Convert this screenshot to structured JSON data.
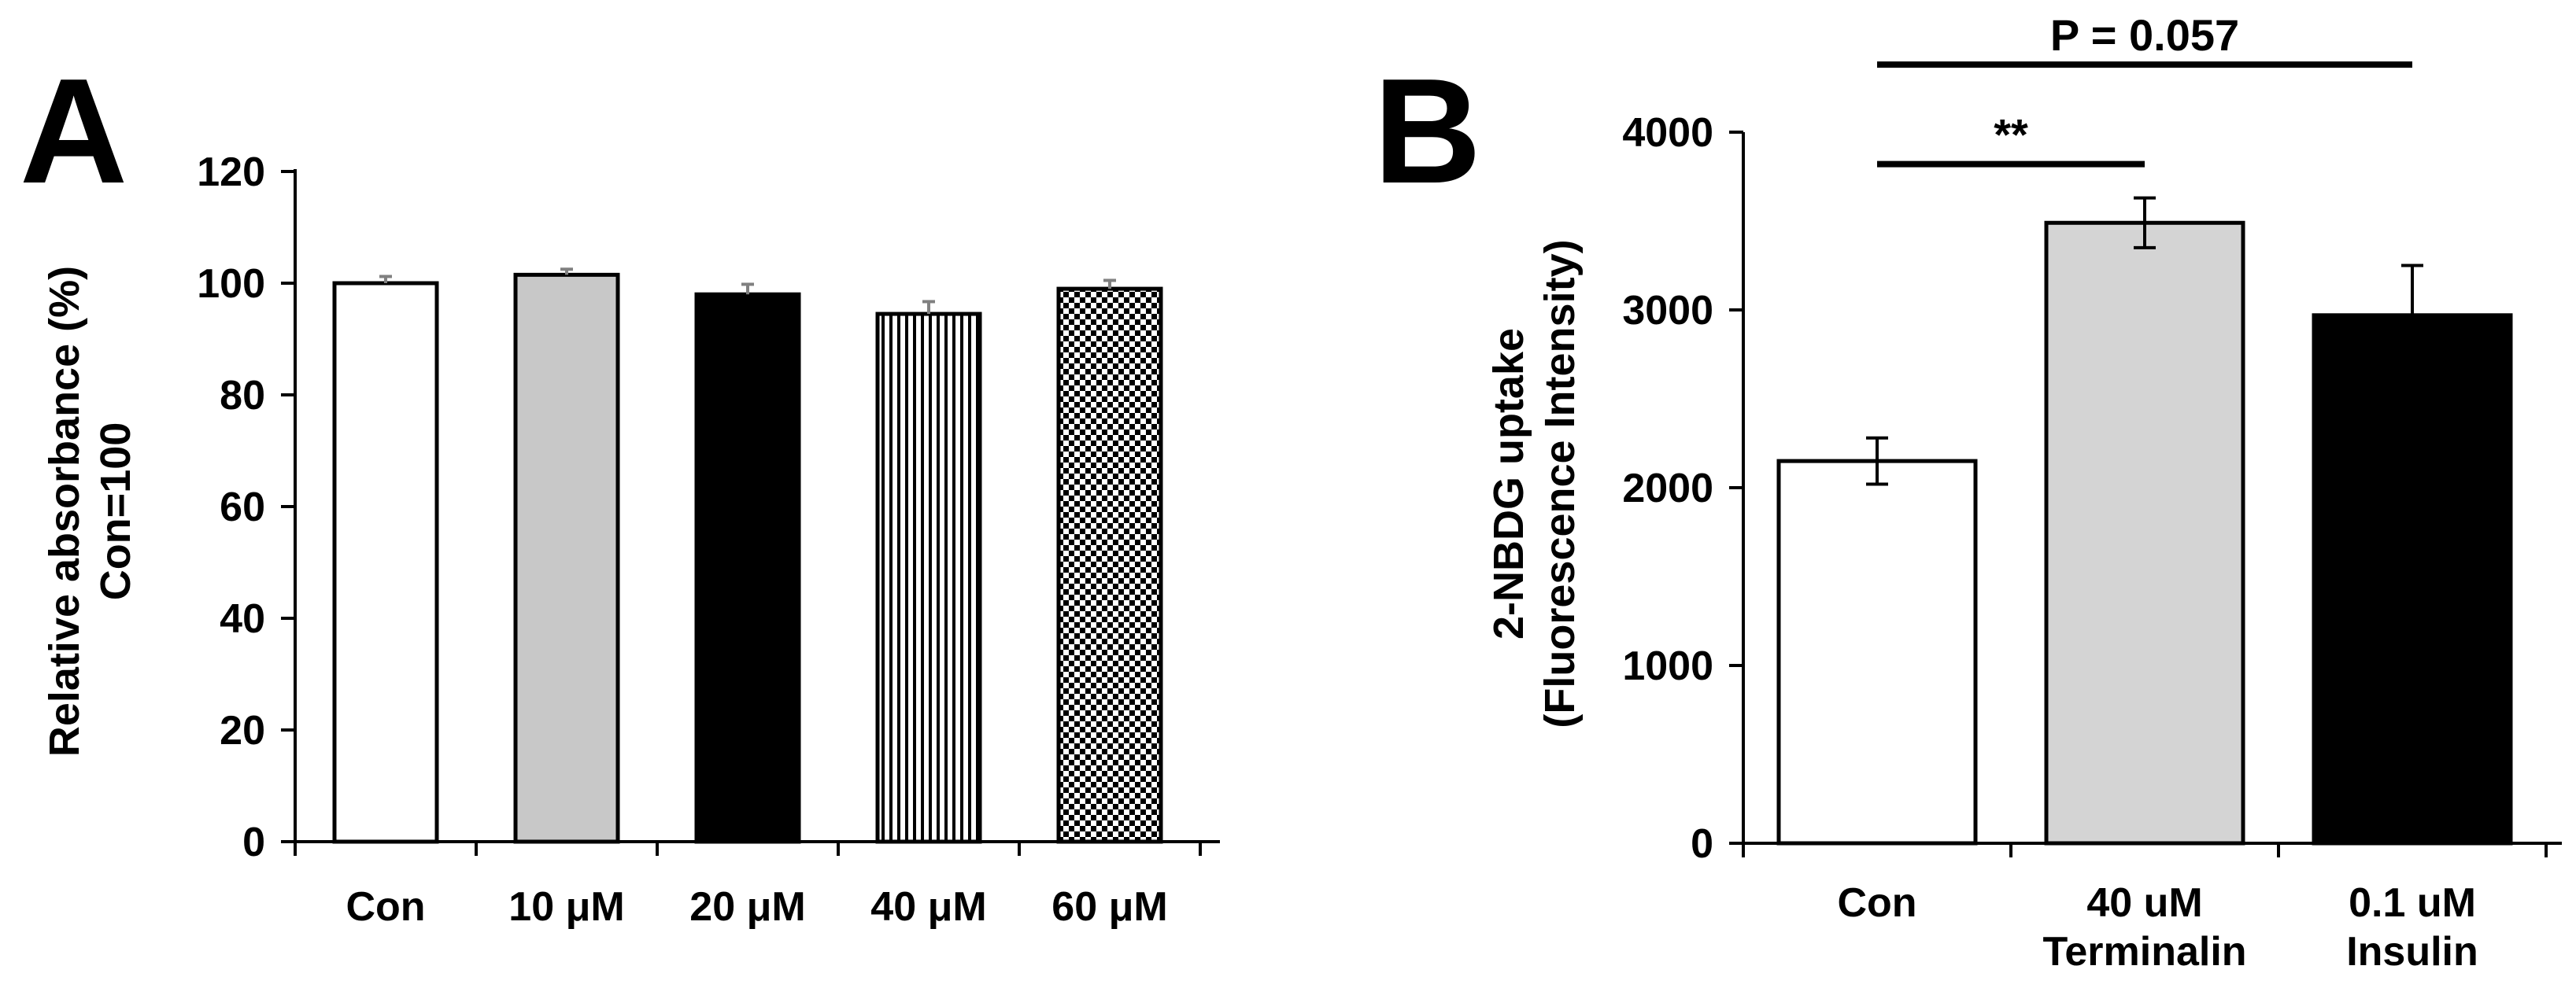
{
  "chart_data": [
    {
      "type": "bar",
      "panel": "A",
      "title": "",
      "xlabel": "",
      "ylabel": "Relative absorbance (%)",
      "ylabel2": "Con=100",
      "ylim": [
        0,
        120
      ],
      "yticks": [
        0,
        20,
        40,
        60,
        80,
        100,
        120
      ],
      "grid": false,
      "categories": [
        "Con",
        "10 μM",
        "20 μM",
        "40 μM",
        "60 μM"
      ],
      "values": [
        100,
        101.5,
        98,
        94.5,
        99
      ],
      "errors": [
        1.2,
        1.0,
        1.8,
        2.2,
        1.5
      ],
      "fills": [
        "white",
        "#c8c8c8",
        "black",
        "vertical-stripes",
        "checker"
      ]
    },
    {
      "type": "bar",
      "panel": "B",
      "title": "",
      "xlabel": "",
      "ylabel": "2-NBDG uptake",
      "ylabel2": "(Fluorescence Intensity)",
      "ylim": [
        0,
        4000
      ],
      "yticks": [
        0,
        1000,
        2000,
        3000,
        4000
      ],
      "grid": false,
      "categories": [
        [
          "Con"
        ],
        [
          "40 uM",
          "Terminalin"
        ],
        [
          "0.1 uM",
          "Insulin"
        ]
      ],
      "values": [
        2150,
        3490,
        2970
      ],
      "errors": [
        130,
        140,
        280
      ],
      "fills": [
        "white",
        "#d4d4d4",
        "black"
      ],
      "annotations": [
        {
          "label": "**",
          "from": 0,
          "to": 1,
          "level": 3820
        },
        {
          "label": "P = 0.057",
          "from": 0,
          "to": 2,
          "level": 4380
        }
      ]
    }
  ]
}
